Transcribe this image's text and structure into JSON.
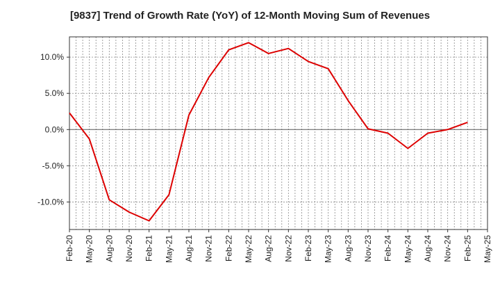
{
  "chart_data": {
    "type": "line",
    "title": "[9837]  Trend of Growth Rate (YoY) of 12-Month Moving Sum of Revenues",
    "xlabel": "",
    "ylabel": "",
    "x": [
      "Feb-20",
      "May-20",
      "Aug-20",
      "Nov-20",
      "Feb-21",
      "May-21",
      "Aug-21",
      "Nov-21",
      "Feb-22",
      "May-22",
      "Aug-22",
      "Nov-22",
      "Feb-23",
      "May-23",
      "Aug-23",
      "Nov-23",
      "Feb-24",
      "May-24",
      "Aug-24",
      "Nov-24",
      "Feb-25",
      "May-25"
    ],
    "series": [
      {
        "color": "#dd0000",
        "values": [
          2.3,
          -1.3,
          -9.7,
          -11.4,
          -12.6,
          -9.0,
          2.0,
          7.2,
          11.0,
          12.0,
          10.5,
          11.2,
          9.4,
          8.4,
          4.0,
          0.1,
          -0.5,
          -2.6,
          -0.5,
          0.0,
          1.0,
          null
        ]
      }
    ],
    "yticks": [
      {
        "value": 10,
        "label": "10.0%"
      },
      {
        "value": 5,
        "label": "5.0%"
      },
      {
        "value": 0,
        "label": "0.0%"
      },
      {
        "value": -5,
        "label": "-5.0%"
      },
      {
        "value": -10,
        "label": "-10.0%"
      }
    ],
    "ylim": [
      -13.8,
      12.8
    ],
    "grid": true,
    "zero_line": true,
    "legend": "none"
  }
}
